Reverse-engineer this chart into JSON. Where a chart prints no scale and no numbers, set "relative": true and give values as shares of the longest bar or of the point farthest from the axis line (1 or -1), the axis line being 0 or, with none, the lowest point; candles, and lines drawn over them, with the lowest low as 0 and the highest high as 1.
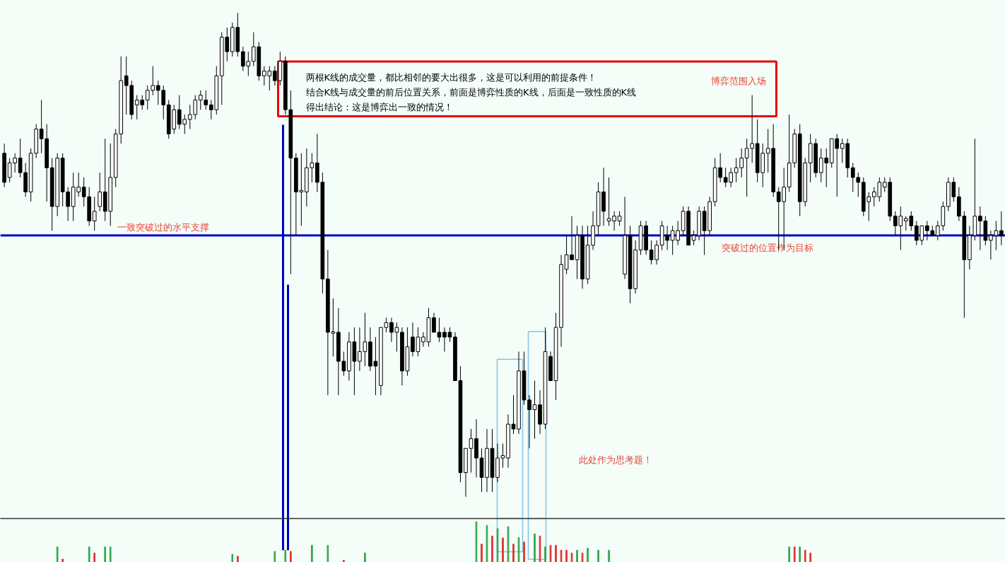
{
  "chart_data": [
    {
      "type": "candlestick",
      "relative": true,
      "color": "#000000",
      "categories": [
        null,
        null,
        null,
        null,
        null,
        null,
        null,
        null,
        null,
        null,
        null,
        null,
        null,
        null,
        null,
        null,
        null,
        null,
        null,
        null,
        null,
        null,
        null,
        null,
        null,
        null,
        null,
        null,
        null,
        null,
        null,
        null,
        null,
        null,
        null,
        null,
        null,
        null,
        null,
        null,
        null,
        null,
        null,
        null,
        null,
        null,
        null,
        null,
        null,
        null,
        null,
        null,
        null,
        null,
        null,
        null,
        null,
        null,
        null,
        null,
        null,
        null,
        null,
        null,
        null,
        null,
        null,
        null,
        null,
        null,
        null,
        null,
        null,
        null,
        null,
        null,
        null,
        null,
        null,
        null,
        null,
        null,
        null,
        null,
        null,
        null,
        null,
        null,
        null,
        null,
        null,
        null,
        null,
        null,
        null,
        null,
        null,
        null,
        null,
        null,
        null,
        null,
        null,
        null,
        null,
        null,
        null,
        null,
        null,
        null,
        null,
        null,
        null,
        null,
        null,
        null,
        null,
        null,
        null,
        null,
        null,
        null,
        null,
        null,
        null,
        null,
        null,
        null,
        null,
        null,
        null,
        null,
        null,
        null,
        null,
        null,
        null,
        null,
        null,
        null,
        null,
        null,
        null,
        null,
        null,
        null,
        null,
        null,
        null,
        null,
        null,
        null,
        null,
        null,
        null,
        null,
        null,
        null,
        null,
        null,
        null,
        null,
        null,
        null,
        null,
        null,
        null,
        null,
        null,
        null,
        null,
        null,
        null,
        null,
        null,
        null,
        null,
        null,
        null,
        null,
        null,
        null,
        null,
        null,
        null,
        null,
        null,
        null,
        null
      ],
      "ohlc": [
        [
          0.71,
          0.73,
          0.64,
          0.65
        ],
        [
          0.66,
          0.7,
          0.65,
          0.69
        ],
        [
          0.69,
          0.71,
          0.67,
          0.7
        ],
        [
          0.7,
          0.74,
          0.66,
          0.67
        ],
        [
          0.67,
          0.69,
          0.62,
          0.63
        ],
        [
          0.63,
          0.72,
          0.61,
          0.71
        ],
        [
          0.71,
          0.77,
          0.7,
          0.76
        ],
        [
          0.76,
          0.82,
          0.71,
          0.74
        ],
        [
          0.74,
          0.77,
          0.61,
          0.68
        ],
        [
          0.68,
          0.7,
          0.55,
          0.6
        ],
        [
          0.6,
          0.71,
          0.58,
          0.7
        ],
        [
          0.7,
          0.71,
          0.6,
          0.63
        ],
        [
          0.63,
          0.64,
          0.57,
          0.6
        ],
        [
          0.6,
          0.67,
          0.57,
          0.64
        ],
        [
          0.63,
          0.67,
          0.62,
          0.64
        ],
        [
          0.64,
          0.66,
          0.6,
          0.62
        ],
        [
          0.62,
          0.64,
          0.56,
          0.57
        ],
        [
          0.57,
          0.62,
          0.55,
          0.59
        ],
        [
          0.6,
          0.67,
          0.59,
          0.63
        ],
        [
          0.63,
          0.74,
          0.57,
          0.59
        ],
        [
          0.59,
          0.73,
          0.56,
          0.66
        ],
        [
          0.66,
          0.76,
          0.64,
          0.75
        ],
        [
          0.75,
          0.91,
          0.73,
          0.86
        ],
        [
          0.87,
          0.91,
          0.79,
          0.85
        ],
        [
          0.85,
          0.86,
          0.78,
          0.79
        ],
        [
          0.81,
          0.83,
          0.78,
          0.82
        ],
        [
          0.82,
          0.83,
          0.8,
          0.81
        ],
        [
          0.82,
          0.85,
          0.8,
          0.84
        ],
        [
          0.84,
          0.89,
          0.83,
          0.85
        ],
        [
          0.85,
          0.86,
          0.81,
          0.84
        ],
        [
          0.84,
          0.85,
          0.78,
          0.81
        ],
        [
          0.81,
          0.82,
          0.74,
          0.75
        ],
        [
          0.76,
          0.81,
          0.75,
          0.8
        ],
        [
          0.8,
          0.83,
          0.76,
          0.77
        ],
        [
          0.77,
          0.79,
          0.75,
          0.78
        ],
        [
          0.78,
          0.81,
          0.76,
          0.79
        ],
        [
          0.79,
          0.83,
          0.78,
          0.82
        ],
        [
          0.82,
          0.84,
          0.8,
          0.83
        ],
        [
          0.82,
          0.84,
          0.8,
          0.81
        ],
        [
          0.81,
          0.82,
          0.78,
          0.8
        ],
        [
          0.8,
          0.89,
          0.79,
          0.87
        ],
        [
          0.87,
          0.96,
          0.81,
          0.95
        ],
        [
          0.95,
          0.97,
          0.9,
          0.92
        ],
        [
          0.92,
          0.98,
          0.91,
          0.97
        ],
        [
          0.97,
          1.0,
          0.91,
          0.92
        ],
        [
          0.92,
          0.93,
          0.88,
          0.89
        ],
        [
          0.89,
          0.92,
          0.87,
          0.9
        ],
        [
          0.9,
          0.96,
          0.89,
          0.93
        ],
        [
          0.93,
          0.94,
          0.86,
          0.87
        ],
        [
          0.87,
          0.89,
          0.85,
          0.88
        ],
        [
          0.87,
          0.89,
          0.84,
          0.88
        ],
        [
          0.88,
          0.89,
          0.85,
          0.86
        ],
        [
          0.86,
          0.92,
          0.85,
          0.9
        ],
        [
          0.9,
          0.91,
          0.79,
          0.8
        ],
        [
          0.8,
          0.84,
          0.46,
          0.7
        ],
        [
          0.7,
          0.71,
          0.54,
          0.63
        ],
        [
          0.63,
          0.71,
          0.56,
          0.633
        ],
        [
          0.63,
          0.72,
          0.6,
          0.68
        ],
        [
          0.68,
          0.71,
          0.65,
          0.69
        ],
        [
          0.69,
          0.75,
          0.63,
          0.65
        ],
        [
          0.65,
          0.67,
          0.42,
          0.45
        ],
        [
          0.45,
          0.51,
          0.21,
          0.34
        ],
        [
          0.338,
          0.41,
          0.29,
          0.341
        ],
        [
          0.34,
          0.39,
          0.21,
          0.28
        ],
        [
          0.28,
          0.3,
          0.25,
          0.26
        ],
        [
          0.26,
          0.34,
          0.24,
          0.32
        ],
        [
          0.32,
          0.35,
          0.21,
          0.28
        ],
        [
          0.28,
          0.35,
          0.26,
          0.3
        ],
        [
          0.3,
          0.38,
          0.27,
          0.32
        ],
        [
          0.32,
          0.35,
          0.26,
          0.27
        ],
        [
          0.28,
          0.33,
          0.21,
          0.27
        ],
        [
          0.23,
          0.35,
          0.21,
          0.35
        ],
        [
          0.35,
          0.37,
          0.34,
          0.36
        ],
        [
          0.36,
          0.37,
          0.32,
          0.34
        ],
        [
          0.34,
          0.36,
          0.3,
          0.35
        ],
        [
          0.34,
          0.35,
          0.23,
          0.26
        ],
        [
          0.26,
          0.35,
          0.25,
          0.31
        ],
        [
          0.33,
          0.36,
          0.29,
          0.3
        ],
        [
          0.3,
          0.35,
          0.29,
          0.33
        ],
        [
          0.32,
          0.34,
          0.31,
          0.33
        ],
        [
          0.32,
          0.39,
          0.31,
          0.37
        ],
        [
          0.37,
          0.38,
          0.34,
          0.34
        ],
        [
          0.34,
          0.37,
          0.32,
          0.33
        ],
        [
          0.34,
          0.35,
          0.3,
          0.33
        ],
        [
          0.34,
          0.35,
          0.32,
          0.33
        ],
        [
          0.33,
          0.34,
          0.24,
          0.24
        ],
        [
          0.24,
          0.27,
          0.03,
          0.05
        ],
        [
          0.05,
          0.1,
          0.0,
          0.1
        ],
        [
          0.1,
          0.14,
          0.05,
          0.12
        ],
        [
          0.12,
          0.16,
          0.04,
          0.08
        ],
        [
          0.08,
          0.1,
          0.01,
          0.04
        ],
        [
          0.04,
          0.14,
          0.01,
          0.1
        ],
        [
          0.1,
          0.14,
          0.01,
          0.04
        ],
        [
          0.04,
          0.11,
          0.03,
          0.08
        ],
        [
          0.08,
          0.11,
          0.06,
          0.085
        ],
        [
          0.08,
          0.17,
          0.06,
          0.15
        ],
        [
          0.15,
          0.21,
          0.13,
          0.14
        ],
        [
          0.14,
          0.3,
          0.13,
          0.26
        ],
        [
          0.26,
          0.3,
          0.19,
          0.2
        ],
        [
          0.2,
          0.21,
          0.1,
          0.18
        ],
        [
          0.18,
          0.24,
          0.12,
          0.19
        ],
        [
          0.19,
          0.22,
          0.13,
          0.15
        ],
        [
          0.15,
          0.35,
          0.14,
          0.3
        ],
        [
          0.29,
          0.3,
          0.24,
          0.24
        ],
        [
          0.24,
          0.38,
          0.2,
          0.35
        ],
        [
          0.35,
          0.5,
          0.31,
          0.48
        ],
        [
          0.47,
          0.54,
          0.46,
          0.5
        ],
        [
          0.5,
          0.58,
          0.49,
          0.49
        ],
        [
          0.49,
          0.56,
          0.45,
          0.54
        ],
        [
          0.54,
          0.56,
          0.43,
          0.45
        ],
        [
          0.45,
          0.56,
          0.44,
          0.52
        ],
        [
          0.52,
          0.59,
          0.51,
          0.56
        ],
        [
          0.56,
          0.65,
          0.54,
          0.63
        ],
        [
          0.63,
          0.68,
          0.56,
          0.59
        ],
        [
          0.57,
          0.66,
          0.56,
          0.575
        ],
        [
          0.57,
          0.59,
          0.55,
          0.58
        ],
        [
          0.57,
          0.59,
          0.56,
          0.58
        ],
        [
          0.46,
          0.62,
          0.45,
          0.54
        ],
        [
          0.54,
          0.56,
          0.4,
          0.43
        ],
        [
          0.43,
          0.53,
          0.42,
          0.51
        ],
        [
          0.51,
          0.57,
          0.5,
          0.56
        ],
        [
          0.56,
          0.57,
          0.5,
          0.51
        ],
        [
          0.51,
          0.53,
          0.48,
          0.49
        ],
        [
          0.49,
          0.53,
          0.48,
          0.52
        ],
        [
          0.52,
          0.57,
          0.51,
          0.56
        ],
        [
          0.54,
          0.56,
          0.51,
          0.53
        ],
        [
          0.53,
          0.56,
          0.5,
          0.55
        ],
        [
          0.53,
          0.57,
          0.52,
          0.55
        ],
        [
          0.55,
          0.6,
          0.54,
          0.59
        ],
        [
          0.59,
          0.6,
          0.52,
          0.52
        ],
        [
          0.53,
          0.55,
          0.52,
          0.54
        ],
        [
          0.54,
          0.6,
          0.53,
          0.59
        ],
        [
          0.59,
          0.6,
          0.5,
          0.55
        ],
        [
          0.55,
          0.62,
          0.54,
          0.61
        ],
        [
          0.61,
          0.7,
          0.6,
          0.68
        ],
        [
          0.68,
          0.71,
          0.65,
          0.66
        ],
        [
          0.66,
          0.68,
          0.64,
          0.65
        ],
        [
          0.65,
          0.68,
          0.64,
          0.67
        ],
        [
          0.67,
          0.7,
          0.65,
          0.68
        ],
        [
          0.68,
          0.72,
          0.66,
          0.7
        ],
        [
          0.7,
          0.74,
          0.62,
          0.72
        ],
        [
          0.72,
          0.83,
          0.69,
          0.73
        ],
        [
          0.73,
          0.78,
          0.65,
          0.67
        ],
        [
          0.67,
          0.73,
          0.64,
          0.71
        ],
        [
          0.71,
          0.76,
          0.67,
          0.72
        ],
        [
          0.72,
          0.77,
          0.62,
          0.63
        ],
        [
          0.63,
          0.64,
          0.51,
          0.61
        ],
        [
          0.61,
          0.68,
          0.51,
          0.64
        ],
        [
          0.64,
          0.79,
          0.63,
          0.69
        ],
        [
          0.69,
          0.76,
          0.68,
          0.75
        ],
        [
          0.75,
          0.77,
          0.58,
          0.61
        ],
        [
          0.61,
          0.7,
          0.6,
          0.69
        ],
        [
          0.69,
          0.75,
          0.65,
          0.73
        ],
        [
          0.73,
          0.74,
          0.66,
          0.67
        ],
        [
          0.67,
          0.72,
          0.65,
          0.7
        ],
        [
          0.7,
          0.72,
          0.64,
          0.69
        ],
        [
          0.69,
          0.74,
          0.68,
          0.74
        ],
        [
          0.74,
          0.75,
          0.62,
          0.72
        ],
        [
          0.72,
          0.74,
          0.69,
          0.73
        ],
        [
          0.73,
          0.74,
          0.66,
          0.68
        ],
        [
          0.68,
          0.69,
          0.63,
          0.66
        ],
        [
          0.66,
          0.67,
          0.62,
          0.65
        ],
        [
          0.65,
          0.66,
          0.58,
          0.59
        ],
        [
          0.61,
          0.63,
          0.57,
          0.62
        ],
        [
          0.62,
          0.64,
          0.6,
          0.63
        ],
        [
          0.62,
          0.66,
          0.61,
          0.65
        ],
        [
          0.64,
          0.66,
          0.63,
          0.65
        ],
        [
          0.65,
          0.66,
          0.57,
          0.58
        ],
        [
          0.58,
          0.59,
          0.54,
          0.56
        ],
        [
          0.56,
          0.6,
          0.51,
          0.58
        ],
        [
          0.57,
          0.58,
          0.55,
          0.575
        ],
        [
          0.58,
          0.59,
          0.55,
          0.56
        ],
        [
          0.56,
          0.57,
          0.52,
          0.53
        ],
        [
          0.53,
          0.56,
          0.52,
          0.56
        ],
        [
          0.56,
          0.57,
          0.53,
          0.55
        ],
        [
          0.55,
          0.56,
          0.54,
          0.54
        ],
        [
          0.54,
          0.57,
          0.53,
          0.56
        ],
        [
          0.56,
          0.61,
          0.55,
          0.6
        ],
        [
          0.6,
          0.66,
          0.59,
          0.65
        ],
        [
          0.65,
          0.66,
          0.61,
          0.62
        ],
        [
          0.62,
          0.64,
          0.57,
          0.58
        ],
        [
          0.58,
          0.59,
          0.37,
          0.49
        ],
        [
          0.49,
          0.56,
          0.47,
          0.54
        ],
        [
          0.54,
          0.74,
          0.53,
          0.58
        ],
        [
          0.58,
          0.6,
          0.51,
          0.57
        ],
        [
          0.57,
          0.58,
          0.52,
          0.53
        ],
        [
          0.53,
          0.55,
          0.49,
          0.54
        ],
        [
          0.54,
          0.57,
          0.51,
          0.55
        ],
        [
          0.55,
          0.59,
          0.52,
          0.54
        ]
      ],
      "ref_lines": [
        {
          "axis": "y",
          "value": 0.54,
          "label": "一致突破过的水平支撑",
          "color": "#0000cc"
        }
      ],
      "annotations": [
        "两根K线的成交量，都比相邻的要大出很多，这是可以利用的前提条件！",
        "结合K线与成交量的前后位置关系，前面是博弈性质的K线，后面是一致性质的K线",
        "得出结论：这是博弈出一致的情况！",
        "博弈范围入场",
        "突破过的位置作为目标",
        "此处作为思考题！"
      ]
    },
    {
      "type": "bar",
      "relative": true,
      "categories": [
        null,
        null,
        null,
        null,
        null,
        null,
        null,
        null,
        null,
        null,
        null,
        null,
        null,
        null,
        null,
        null,
        null,
        null,
        null,
        null,
        null,
        null,
        null,
        null,
        null,
        null,
        null,
        null,
        null,
        null,
        null,
        null,
        null,
        null,
        null,
        null,
        null,
        null,
        null,
        null,
        null,
        null,
        null,
        null,
        null,
        null,
        null,
        null,
        null,
        null,
        null,
        null,
        null,
        null,
        null,
        null,
        null,
        null,
        null,
        null,
        null,
        null,
        null,
        null,
        null,
        null,
        null,
        null,
        null,
        null,
        null,
        null,
        null,
        null,
        null,
        null,
        null,
        null,
        null,
        null,
        null,
        null,
        null,
        null,
        null,
        null,
        null,
        null,
        null,
        null,
        null,
        null,
        null,
        null,
        null,
        null,
        null,
        null,
        null,
        null,
        null,
        null,
        null,
        null,
        null,
        null,
        null,
        null,
        null,
        null,
        null,
        null,
        null,
        null,
        null,
        null,
        null,
        null,
        null,
        null,
        null,
        null,
        null,
        null,
        null,
        null,
        null,
        null,
        null,
        null,
        null,
        null,
        null,
        null,
        null,
        null,
        null,
        null,
        null,
        null,
        null,
        null,
        null,
        null,
        null,
        null,
        null,
        null,
        null,
        null,
        null,
        null,
        null,
        null,
        null,
        null,
        null,
        null,
        null,
        null,
        null,
        null,
        null,
        null,
        null,
        null,
        null,
        null,
        null,
        null,
        null,
        null,
        null,
        null,
        null,
        null,
        null,
        null,
        null,
        null,
        null,
        null,
        null,
        null,
        null,
        null,
        null,
        null,
        null
      ],
      "values": [
        0,
        0,
        0,
        0,
        0,
        0,
        0,
        0,
        0,
        0,
        0.38,
        0.08,
        0,
        0,
        0,
        0,
        0.38,
        0.23,
        0,
        0.38,
        0.38,
        0,
        0,
        0,
        0,
        0,
        0,
        0,
        0,
        0,
        0,
        0,
        0,
        0,
        0,
        0,
        0,
        0,
        0,
        0,
        0,
        0,
        0,
        0.2,
        0.15,
        0,
        0,
        0,
        0,
        0,
        0,
        0.27,
        0,
        0.3,
        0.27,
        0,
        0,
        0,
        0.42,
        0,
        0,
        0.42,
        0,
        0,
        0.05,
        0,
        0,
        0,
        0.23,
        0,
        0,
        0,
        0,
        0,
        0,
        0,
        0,
        0,
        0,
        0,
        0,
        0,
        0,
        0,
        0,
        0,
        0,
        0,
        0,
        1.0,
        0.45,
        0.91,
        0.65,
        0.83,
        0.6,
        0.88,
        0.45,
        0.61,
        0.5,
        0,
        0.7,
        0.65,
        0.38,
        0.42,
        0.42,
        0.3,
        0.3,
        0.23,
        0.3,
        0.23,
        0.35,
        0,
        0.3,
        0,
        0.3,
        0,
        0,
        0,
        0,
        0,
        0,
        0,
        0,
        0,
        0,
        0,
        0,
        0,
        0,
        0,
        0,
        0,
        0,
        0,
        0,
        0,
        0,
        0,
        0,
        0,
        0,
        0,
        0,
        0,
        0,
        0,
        0,
        0,
        0.38,
        0.38,
        0.38,
        0.3,
        0.23,
        0,
        0,
        0,
        0,
        0,
        0,
        0,
        0,
        0,
        0,
        0,
        0,
        0,
        0,
        0,
        0,
        0,
        0,
        0,
        0,
        0,
        0,
        0,
        0,
        0,
        0,
        0,
        0,
        0,
        0,
        0,
        0,
        0,
        0,
        0,
        0
      ],
      "colors": [
        null,
        null,
        null,
        null,
        null,
        null,
        null,
        null,
        null,
        null,
        "#2fa84f",
        "#e03030",
        null,
        null,
        null,
        null,
        "#2fa84f",
        "#e03030",
        null,
        "#2fa84f",
        "#2fa84f",
        null,
        null,
        null,
        null,
        null,
        null,
        null,
        null,
        null,
        null,
        null,
        null,
        null,
        null,
        null,
        null,
        null,
        null,
        null,
        null,
        null,
        null,
        "#2fa84f",
        "#e03030",
        null,
        null,
        null,
        null,
        null,
        null,
        "#2fa84f",
        null,
        "#2fa84f",
        "#e03030",
        null,
        null,
        null,
        "#2fa84f",
        null,
        null,
        "#2fa84f",
        null,
        null,
        "#e03030",
        null,
        null,
        null,
        "#2fa84f",
        null,
        null,
        null,
        null,
        null,
        null,
        null,
        null,
        null,
        null,
        null,
        null,
        null,
        null,
        null,
        null,
        null,
        null,
        null,
        null,
        "#2fa84f",
        "#e03030",
        "#2fa84f",
        "#e03030",
        "#2fa84f",
        "#e03030",
        "#2fa84f",
        "#e03030",
        "#2fa84f",
        "#e03030",
        null,
        "#2fa84f",
        "#e03030",
        "#2fa84f",
        "#e03030",
        "#e03030",
        "#e03030",
        "#e03030",
        "#e03030",
        "#2fa84f",
        "#e03030",
        "#2fa84f",
        null,
        "#2fa84f",
        null,
        "#2fa84f",
        null,
        null,
        null,
        null,
        null,
        null,
        null,
        null,
        null,
        null,
        null,
        null,
        null,
        null,
        null,
        null,
        null,
        null,
        null,
        null,
        null,
        null,
        null,
        null,
        null,
        null,
        null,
        null,
        null,
        null,
        null,
        null,
        null,
        "#2fa84f",
        "#e03030",
        "#2fa84f",
        "#e03030",
        "#e03030",
        null,
        null,
        null,
        null,
        null,
        null,
        null,
        null,
        null,
        null,
        null,
        null,
        null,
        null,
        null,
        null,
        null,
        null,
        null,
        null,
        null,
        null,
        null,
        null,
        null,
        null,
        null,
        null,
        null,
        null,
        null,
        null,
        null,
        null,
        null,
        null
      ]
    }
  ]
}
